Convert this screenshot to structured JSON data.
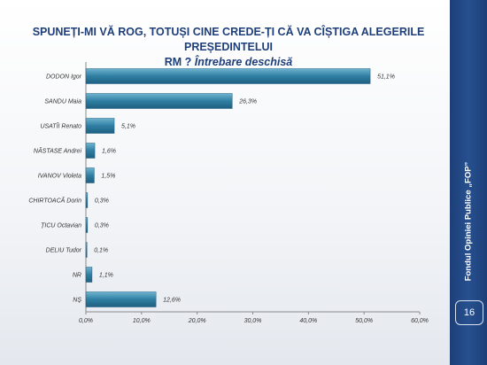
{
  "slide": {
    "title_line1": "SPUNEȚI-MI VĂ ROG, TOTUȘI CINE CREDE-ȚI CĂ VA CÎȘTIGA ALEGERILE PREȘEDINTELUI",
    "title_line2_plain": "RM ?",
    "title_line2_italic": "Întrebare deschisă",
    "sidebar_text": "Fondul Opiniei Publice „FOP”",
    "page_number": "16"
  },
  "colors": {
    "title": "#1f3f7a",
    "bar": "#2f7fa3",
    "sidebar": "#1d3f78"
  },
  "chart_data": {
    "type": "bar",
    "orientation": "horizontal",
    "categories": [
      "DODON Igor",
      "SANDU Maia",
      "USATÎI Renato",
      "NĂSTASE Andrei",
      "IVANOV Violeta",
      "CHIRTOACĂ Dorin",
      "ȚICU Octavian",
      "DELIU Tudor",
      "NR",
      "NȘ"
    ],
    "values": [
      51.1,
      26.3,
      5.1,
      1.6,
      1.5,
      0.3,
      0.3,
      0.1,
      1.1,
      12.6
    ],
    "value_labels": [
      "51,1%",
      "26,3%",
      "5,1%",
      "1,6%",
      "1,5%",
      "0,3%",
      "0,3%",
      "0,1%",
      "1,1%",
      "12,6%"
    ],
    "x_ticks": [
      0,
      10,
      20,
      30,
      40,
      50,
      60
    ],
    "x_tick_labels": [
      "0,0%",
      "10,0%",
      "20,0%",
      "30,0%",
      "40,0%",
      "50,0%",
      "60,0%"
    ],
    "xlim": [
      0,
      60
    ],
    "grid": false,
    "legend": "none"
  }
}
